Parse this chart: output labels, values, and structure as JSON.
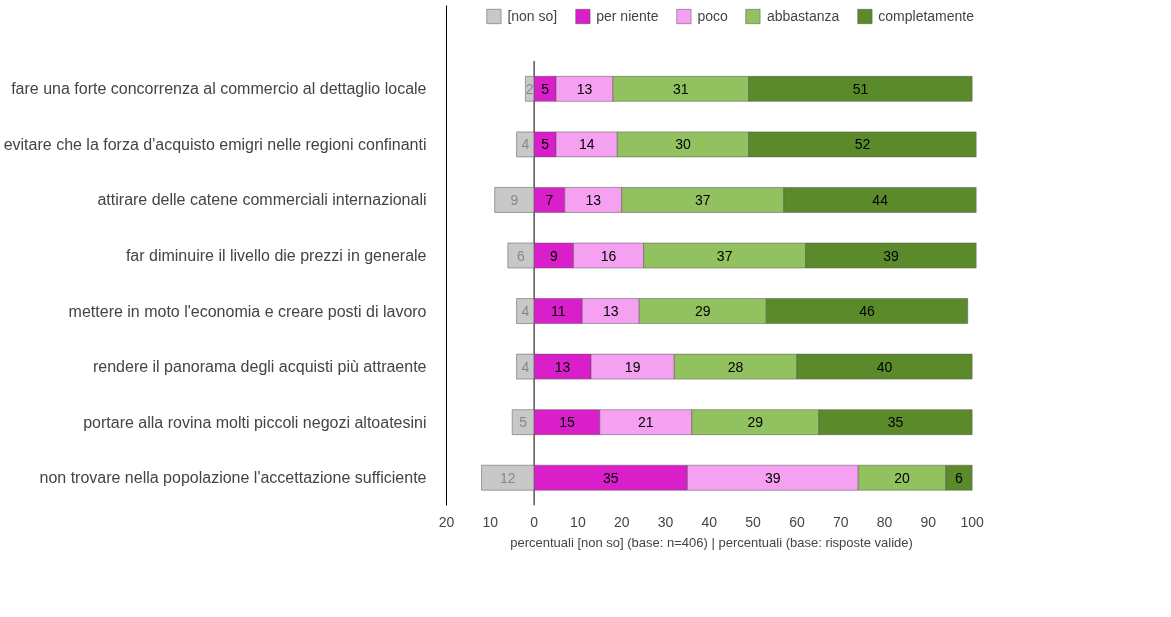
{
  "chart_data": {
    "type": "bar",
    "orientation": "horizontal",
    "categories": [
      "fare una forte concorrenza al commercio al dettaglio locale",
      "evitare che la forza d'acquisto emigri nelle regioni confinanti",
      "attirare delle catene commerciali internazionali",
      "far diminuire il livello die prezzi in generale",
      "mettere in moto l'economia e creare posti di lavoro",
      "rendere il panorama degli acquisti più attraente",
      "portare alla rovina molti piccoli negozi altoatesini",
      "non trovare nella popolazione l'accettazione sufficiente"
    ],
    "series": [
      {
        "name": "[non so]",
        "color": "#c8c8c8",
        "values": [
          2,
          4,
          9,
          6,
          4,
          4,
          5,
          12
        ],
        "base": [
          -2,
          -4,
          -9,
          -6,
          -4,
          -4,
          -5,
          -12
        ]
      },
      {
        "name": "per niente",
        "color": "#d91fc9",
        "values": [
          5,
          5,
          7,
          9,
          11,
          13,
          15,
          35
        ],
        "base": [
          0,
          0,
          0,
          0,
          0,
          0,
          0,
          0
        ]
      },
      {
        "name": "poco",
        "color": "#f5a0f0",
        "values": [
          13,
          14,
          13,
          16,
          13,
          19,
          21,
          39
        ],
        "base": [
          5,
          5,
          7,
          9,
          11,
          13,
          15,
          35
        ]
      },
      {
        "name": "abbastanza",
        "color": "#92c15f",
        "values": [
          31,
          30,
          37,
          37,
          29,
          28,
          29,
          20
        ],
        "base": [
          18,
          19,
          20,
          25,
          24,
          32,
          36,
          74
        ]
      },
      {
        "name": "completamente",
        "color": "#5b8a2b",
        "values": [
          51,
          52,
          44,
          39,
          46,
          40,
          35,
          6
        ],
        "base": [
          49,
          49,
          57,
          62,
          53,
          60,
          65,
          94
        ]
      }
    ],
    "data_labels": true,
    "xlim": [
      -20,
      101
    ],
    "xticks": [
      {
        "value": -20,
        "label": "20"
      },
      {
        "value": -10,
        "label": "10"
      },
      0,
      10,
      20,
      30,
      40,
      50,
      60,
      70,
      80,
      90,
      100
    ],
    "ref_lines": [
      {
        "axis": "x",
        "value": 0
      }
    ],
    "xlabel": "percentuali [non so] (base: n=406) | percentuali (base: risposte valide)",
    "legend": "top"
  }
}
